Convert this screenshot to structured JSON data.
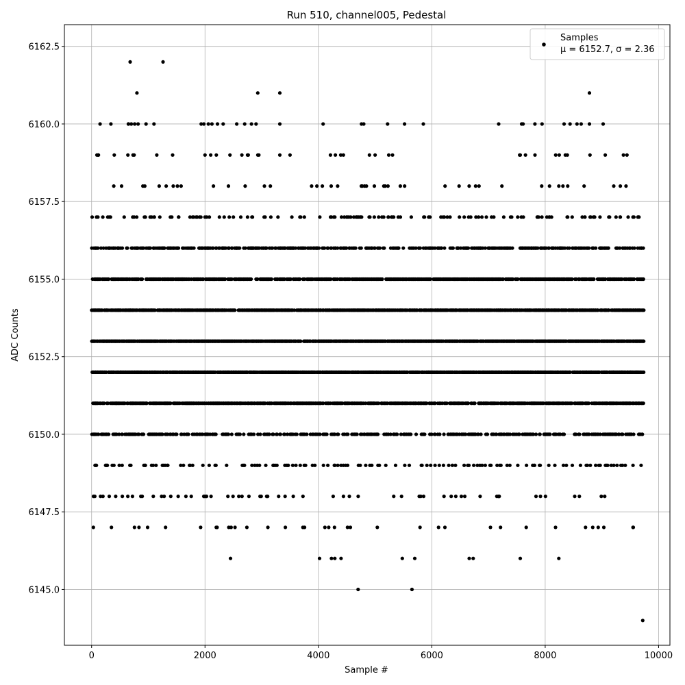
{
  "chart_data": {
    "type": "scatter",
    "title": "Run 510, channel005, Pedestal",
    "xlabel": "Sample #",
    "ylabel": "ADC Counts",
    "xlim": [
      -480,
      10200
    ],
    "ylim": [
      6143.2,
      6163.2
    ],
    "xticks": [
      0,
      2000,
      4000,
      6000,
      8000,
      10000
    ],
    "xtick_labels": [
      "0",
      "2000",
      "4000",
      "6000",
      "8000",
      "10000"
    ],
    "yticks": [
      6145.0,
      6147.5,
      6150.0,
      6152.5,
      6155.0,
      6157.5,
      6160.0,
      6162.5
    ],
    "ytick_labels": [
      "6145.0",
      "6147.5",
      "6150.0",
      "6152.5",
      "6155.0",
      "6157.5",
      "6160.0",
      "6162.5"
    ],
    "grid": true,
    "legend_position": "top-right",
    "n_samples": 9740,
    "series": [
      {
        "name": "Samples",
        "label_line2": "μ = 6152.7, σ = 2.36",
        "color": "#000000",
        "level_densities": [
          {
            "level": 6144,
            "density": 0
          },
          {
            "level": 6145,
            "density": 0
          },
          {
            "level": 6146,
            "density": 0
          },
          {
            "level": 6147,
            "density": 0.045
          },
          {
            "level": 6148,
            "density": 0.075
          },
          {
            "level": 6149,
            "density": 0.16
          },
          {
            "level": 6150,
            "density": 0.42
          },
          {
            "level": 6151,
            "density": 0.72
          },
          {
            "level": 6152,
            "density": 0.9
          },
          {
            "level": 6153,
            "density": 0.9
          },
          {
            "level": 6154,
            "density": 0.88
          },
          {
            "level": 6155,
            "density": 0.72
          },
          {
            "level": 6156,
            "density": 0.45
          },
          {
            "level": 6157,
            "density": 0.16
          },
          {
            "level": 6158,
            "density": 0.045
          },
          {
            "level": 6159,
            "density": 0.02
          },
          {
            "level": 6160,
            "density": 0.015
          },
          {
            "level": 6161,
            "density": 0
          },
          {
            "level": 6162,
            "density": 0
          }
        ],
        "points": [
          [
            680,
            6162
          ],
          [
            1260,
            6162
          ],
          [
            800,
            6161
          ],
          [
            2930,
            6161
          ],
          [
            3320,
            6161
          ],
          [
            8780,
            6161
          ],
          [
            4700,
            6145
          ],
          [
            5650,
            6145
          ],
          [
            9720,
            6144
          ],
          [
            2450,
            6146
          ],
          [
            4020,
            6146
          ],
          [
            4230,
            6146
          ],
          [
            4290,
            6146
          ],
          [
            4400,
            6146
          ],
          [
            5480,
            6146
          ],
          [
            5700,
            6146
          ],
          [
            6660,
            6146
          ],
          [
            6730,
            6146
          ],
          [
            7560,
            6146
          ],
          [
            8240,
            6146
          ],
          [
            150,
            6160
          ],
          [
            340,
            6160
          ],
          [
            650,
            6160
          ],
          [
            700,
            6160
          ],
          [
            760,
            6160
          ],
          [
            820,
            6160
          ],
          [
            960,
            6160
          ],
          [
            1100,
            6160
          ],
          [
            1980,
            6160
          ],
          [
            2060,
            6160
          ],
          [
            2220,
            6160
          ],
          [
            2320,
            6160
          ],
          [
            2560,
            6160
          ],
          [
            2700,
            6160
          ],
          [
            2820,
            6160
          ],
          [
            2900,
            6160
          ],
          [
            3320,
            6160
          ],
          [
            4760,
            6160
          ],
          [
            4800,
            6160
          ],
          [
            5220,
            6160
          ],
          [
            5520,
            6160
          ],
          [
            7180,
            6160
          ],
          [
            8560,
            6160
          ],
          [
            8780,
            6160
          ],
          [
            120,
            6159
          ],
          [
            400,
            6159
          ],
          [
            640,
            6159
          ],
          [
            750,
            6159
          ],
          [
            1150,
            6159
          ],
          [
            2000,
            6159
          ],
          [
            2100,
            6159
          ],
          [
            2200,
            6159
          ],
          [
            2440,
            6159
          ],
          [
            2650,
            6159
          ],
          [
            2750,
            6159
          ],
          [
            2950,
            6159
          ],
          [
            3320,
            6159
          ],
          [
            3500,
            6159
          ],
          [
            4300,
            6159
          ],
          [
            4900,
            6159
          ],
          [
            5000,
            6159
          ],
          [
            5240,
            6159
          ],
          [
            7560,
            6159
          ],
          [
            7820,
            6159
          ],
          [
            8390,
            6159
          ],
          [
            8790,
            6159
          ],
          [
            9060,
            6159
          ],
          [
            9380,
            6159
          ]
        ]
      }
    ]
  }
}
